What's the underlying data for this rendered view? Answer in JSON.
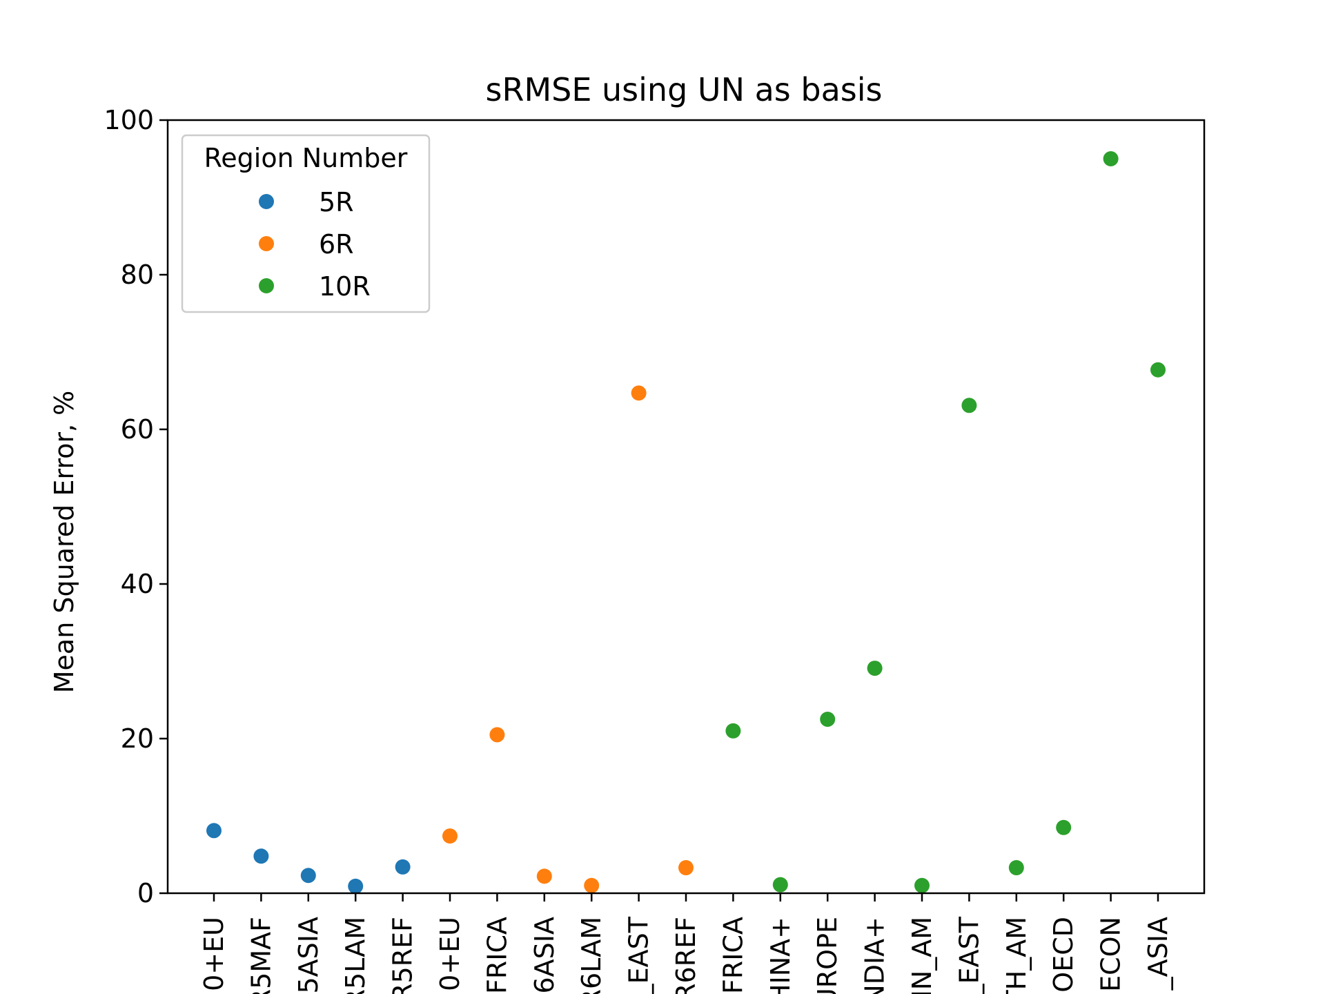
{
  "chart_data": {
    "type": "scatter",
    "title": "sRMSE using UN as basis",
    "xlabel": "",
    "ylabel": "Mean Squared Error, %",
    "ylim": [
      0,
      100
    ],
    "yticks": [
      0,
      20,
      40,
      60,
      80,
      100
    ],
    "grid": false,
    "legend": {
      "title": "Region Number",
      "position": "top-left"
    },
    "categories": [
      "0+EU",
      "R5MAF",
      "5ASIA",
      "R5LAM",
      "R5REF",
      "0+EU",
      "FRICA",
      "6ASIA",
      "R6LAM",
      "_EAST",
      "R6REF",
      "FRICA",
      "HINA+",
      "UROPE",
      "NDIA+",
      "IN_AM",
      "_EAST",
      "TH_AM",
      "OECD",
      "ECON",
      "_ASIA"
    ],
    "series": [
      {
        "name": "5R",
        "color": "#1f77b4",
        "indices": [
          0,
          1,
          2,
          3,
          4
        ],
        "values": [
          8.1,
          4.8,
          2.3,
          0.9,
          3.4
        ]
      },
      {
        "name": "6R",
        "color": "#ff7f0e",
        "indices": [
          5,
          6,
          7,
          8,
          9,
          10
        ],
        "values": [
          7.4,
          20.5,
          2.2,
          1.0,
          64.7,
          3.3
        ]
      },
      {
        "name": "10R",
        "color": "#2ca02c",
        "indices": [
          11,
          12,
          13,
          14,
          15,
          16,
          17,
          18,
          19,
          20
        ],
        "values": [
          21.0,
          1.1,
          22.5,
          29.1,
          1.0,
          63.1,
          3.3,
          8.5,
          95.0,
          67.7
        ]
      }
    ]
  }
}
